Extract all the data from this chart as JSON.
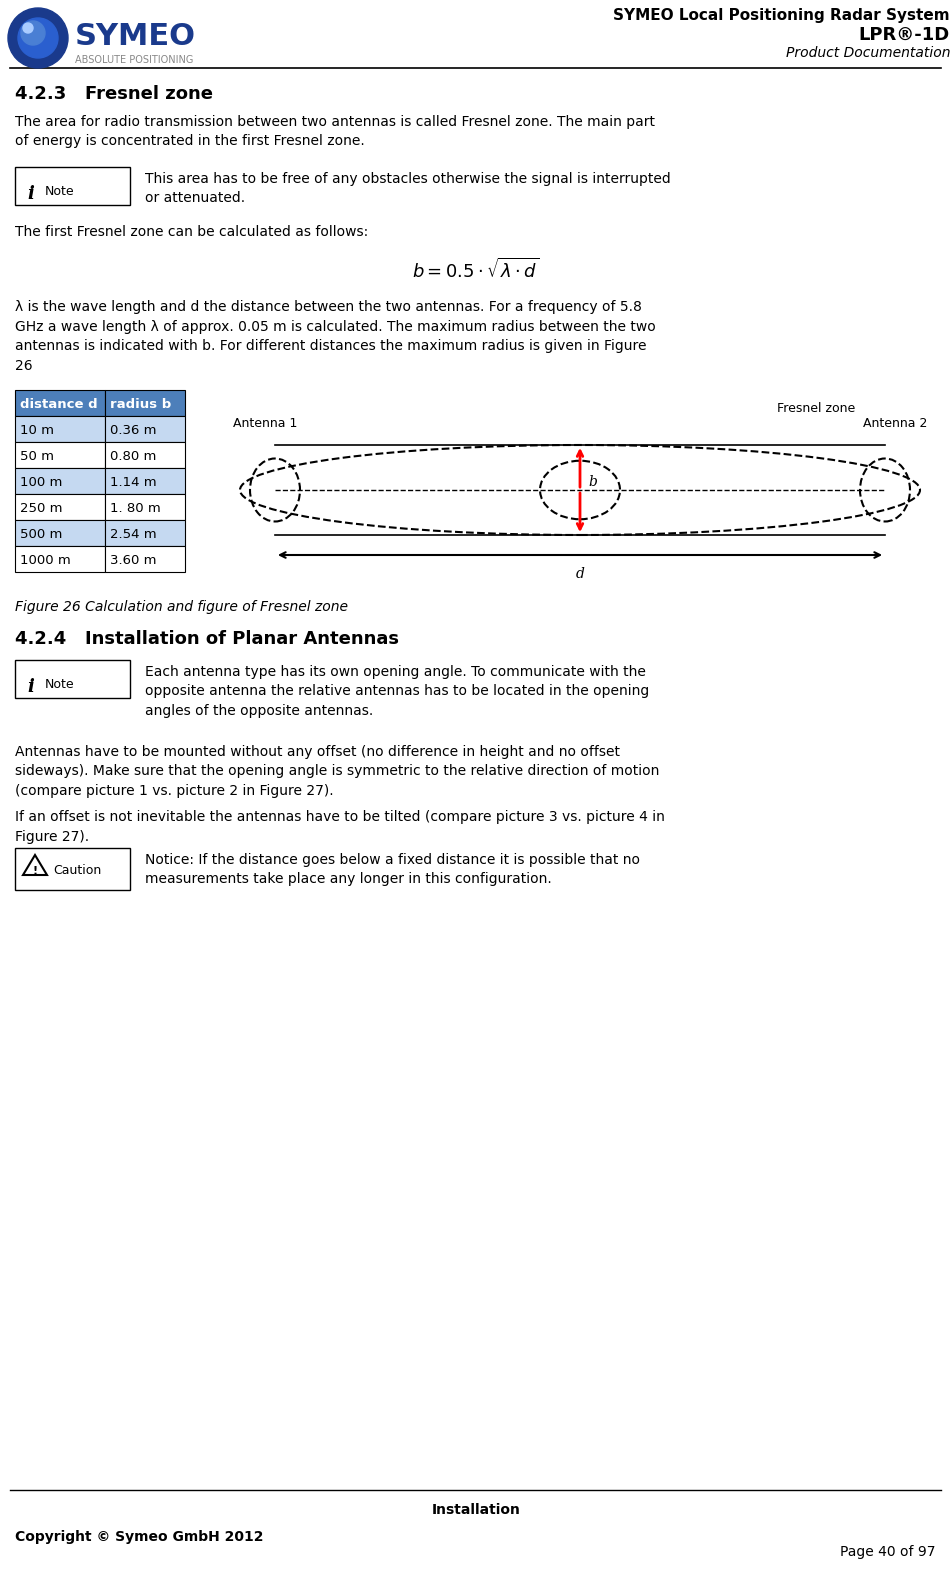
{
  "page_title_line1": "SYMEO Local Positioning Radar System",
  "page_title_line2": "LPR®-1D",
  "page_title_line3": "Product Documentation",
  "section_title": "4.2.3   Fresnel zone",
  "para1": "The area for radio transmission between two antennas is called Fresnel zone. The main part\nof energy is concentrated in the first Fresnel zone.",
  "note_text": "This area has to be free of any obstacles otherwise the signal is interrupted\nor attenuated.",
  "para2": "The first Fresnel zone can be calculated as follows:",
  "formula": "b = 0.5 · √λ · d",
  "para3": "λ is the wave length and d the distance between the two antennas. For a frequency of 5.8\nGHz a wave length λ of approx. 0.05 m is calculated. The maximum radius between the two\nantennas is indicated with b. For different distances the maximum radius is given in Figure\n26",
  "table_headers": [
    "distance d",
    "radius b"
  ],
  "table_rows": [
    [
      "10 m",
      "0.36 m"
    ],
    [
      "50 m",
      "0.80 m"
    ],
    [
      "100 m",
      "1.14 m"
    ],
    [
      "250 m",
      "1. 80 m"
    ],
    [
      "500 m",
      "2.54 m"
    ],
    [
      "1000 m",
      "3.60 m"
    ]
  ],
  "figure_caption": "Figure 26 Calculation and figure of Fresnel zone",
  "section2_title": "4.2.4   Installation of Planar Antennas",
  "note2_text": "Each antenna type has its own opening angle. To communicate with the\nopposite antenna the relative antennas has to be located in the opening\nangles of the opposite antennas.",
  "para4": "Antennas have to be mounted without any offset (no difference in height and no offset\nsideways). Make sure that the opening angle is symmetric to the relative direction of motion\n(compare picture 1 vs. picture 2 in Figure 27).",
  "para5": "If an offset is not inevitable the antennas have to be tilted (compare picture 3 vs. picture 4 in\nFigure 27).",
  "caution_text": "Notice: If the distance goes below a fixed distance it is possible that no\nmeasurements take place any longer in this configuration.",
  "footer_center": "Installation",
  "footer_left": "Copyright © Symeo GmbH 2012",
  "footer_right": "Page 40 of 97",
  "bg_color": "#ffffff",
  "header_line_color": "#000000",
  "table_header_bg": "#4d7fba",
  "table_row_bg_alt": "#c5d9f1",
  "table_text_color": "#ffffff",
  "table_row_text_color": "#000000"
}
